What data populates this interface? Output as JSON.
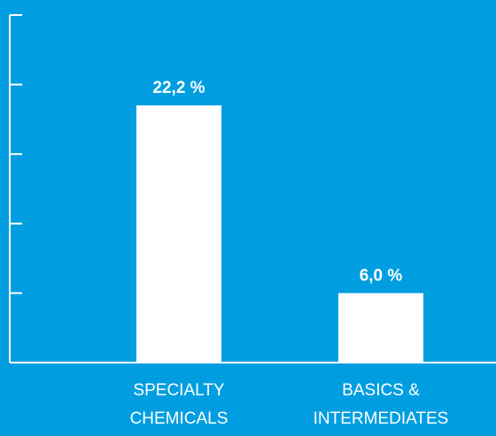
{
  "colors": {
    "background": "#009ee0",
    "bar": "#ffffff",
    "axis": "#ffffff",
    "text": "#ffffff"
  },
  "chart_data": {
    "type": "bar",
    "categories": [
      [
        "SPECIALTY",
        "CHEMICALS"
      ],
      [
        "BASICS &",
        "INTERMEDIATES"
      ]
    ],
    "values": [
      22.2,
      6.0
    ],
    "data_labels": [
      "22,2 %",
      "6,0 %"
    ],
    "ylim": [
      0,
      30
    ],
    "y_tick_count": 6,
    "grid": false,
    "title": "",
    "xlabel": "",
    "ylabel": ""
  }
}
